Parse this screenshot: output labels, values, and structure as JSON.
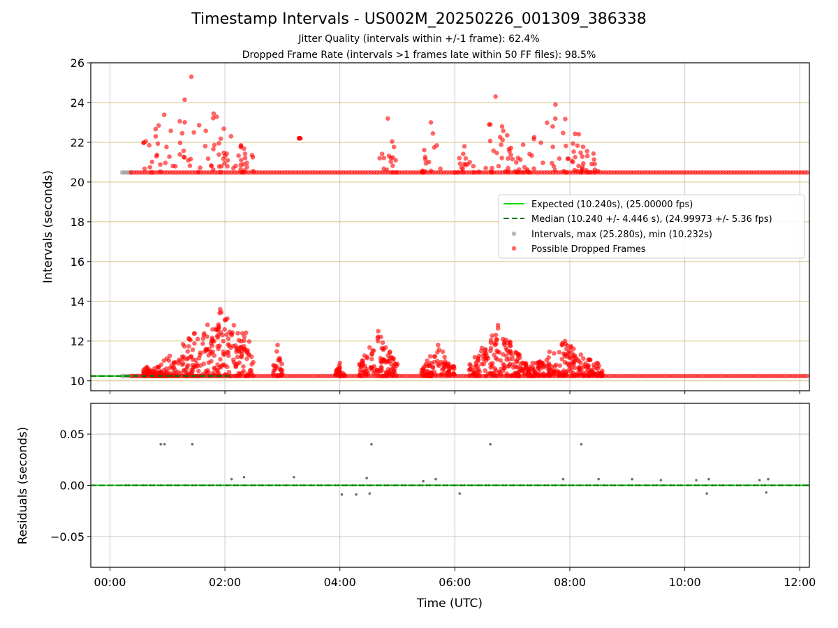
{
  "figure": {
    "title": "Timestamp Intervals - US002M_20250226_001309_386338",
    "subtitle_1": "Jitter Quality (intervals within +/-1 frame): 62.4%",
    "subtitle_2": "Dropped Frame Rate (intervals >1 frames late within 50 FF files): 98.5%",
    "xlabel": "Time (UTC)"
  },
  "colors": {
    "expected": "#00dd00",
    "median": "#007700",
    "intervals": "#808080",
    "dropped": "#ff0000",
    "hgrid": "#d4c285",
    "vgrid": "#c8c8c8"
  },
  "chart_data": [
    {
      "type": "scatter",
      "ylabel": "Intervals (seconds)",
      "xlim": [
        "-00:20",
        "12:10"
      ],
      "ylim": [
        9.5,
        26
      ],
      "x_ticks": [
        "00:00",
        "02:00",
        "04:00",
        "06:00",
        "08:00",
        "10:00",
        "12:00"
      ],
      "y_ticks": [
        10,
        12,
        14,
        16,
        18,
        20,
        22,
        24,
        26
      ],
      "grid": true,
      "legend": {
        "position": "center-right",
        "entries": [
          {
            "label": "Expected (10.240s), (25.00000 fps)",
            "kind": "line",
            "color": "#00dd00"
          },
          {
            "label": "Median (10.240 +/- 4.446 s), (24.99973 +/- 5.36 fps)",
            "kind": "dashed-line",
            "color": "#007700"
          },
          {
            "label": "Intervals, max (25.280s), min (10.232s)",
            "kind": "marker",
            "color": "#808080"
          },
          {
            "label": "Possible Dropped Frames",
            "kind": "marker",
            "color": "#ff0000"
          }
        ]
      },
      "expected_value": 10.24,
      "median_value": 10.24,
      "max_interval": 25.28,
      "min_interval": 10.232,
      "baseline_bands": [
        {
          "series": "Intervals",
          "y": 10.24,
          "x_start": "00:13",
          "x_end": "02:05"
        },
        {
          "series": "Intervals",
          "y": 20.48,
          "x_start": "00:13",
          "x_end": "00:22"
        },
        {
          "series": "Possible Dropped Frames",
          "y": 10.24,
          "x_start": "00:22",
          "x_end": "12:10"
        },
        {
          "series": "Possible Dropped Frames",
          "y": 20.48,
          "x_start": "00:22",
          "x_end": "12:10"
        }
      ],
      "dropped_frame_clusters": [
        {
          "band": "upper",
          "x_start": "00:35",
          "x_end": "02:30",
          "y_min": 20.48,
          "y_max": 25.3,
          "peak_time": "01:25"
        },
        {
          "band": "upper",
          "x_start": "03:15",
          "x_end": "03:20",
          "y_min": 22.2,
          "y_max": 22.2
        },
        {
          "band": "upper",
          "x_start": "04:40",
          "x_end": "05:00",
          "y_min": 20.48,
          "y_max": 23.2
        },
        {
          "band": "upper",
          "x_start": "05:25",
          "x_end": "05:45",
          "y_min": 20.48,
          "y_max": 23.0
        },
        {
          "band": "upper",
          "x_start": "06:00",
          "x_end": "06:20",
          "y_min": 20.48,
          "y_max": 21.8
        },
        {
          "band": "upper",
          "x_start": "06:25",
          "x_end": "07:00",
          "y_min": 20.48,
          "y_max": 24.3
        },
        {
          "band": "upper",
          "x_start": "07:00",
          "x_end": "08:30",
          "y_min": 20.48,
          "y_max": 23.9
        },
        {
          "band": "lower",
          "x_start": "00:35",
          "x_end": "02:30",
          "y_min": 10.24,
          "y_max": 13.6,
          "peak_time": "01:55"
        },
        {
          "band": "lower",
          "x_start": "02:50",
          "x_end": "03:00",
          "y_min": 10.24,
          "y_max": 11.8
        },
        {
          "band": "lower",
          "x_start": "03:55",
          "x_end": "04:05",
          "y_min": 10.24,
          "y_max": 10.9
        },
        {
          "band": "lower",
          "x_start": "04:20",
          "x_end": "05:00",
          "y_min": 10.24,
          "y_max": 12.5
        },
        {
          "band": "lower",
          "x_start": "05:25",
          "x_end": "06:00",
          "y_min": 10.24,
          "y_max": 11.8
        },
        {
          "band": "lower",
          "x_start": "06:15",
          "x_end": "07:15",
          "y_min": 10.24,
          "y_max": 12.8
        },
        {
          "band": "lower",
          "x_start": "07:15",
          "x_end": "08:35",
          "y_min": 10.24,
          "y_max": 12.0
        }
      ]
    },
    {
      "type": "scatter",
      "ylabel": "Residuals (seconds)",
      "xlim": [
        "-00:20",
        "12:10"
      ],
      "ylim": [
        -0.08,
        0.08
      ],
      "x_ticks": [
        "00:00",
        "02:00",
        "04:00",
        "06:00",
        "08:00",
        "10:00",
        "12:00"
      ],
      "y_ticks": [
        "−0.05",
        "0.00",
        "0.05"
      ],
      "y_tick_values": [
        -0.05,
        0.0,
        0.05
      ],
      "grid": true,
      "reference_lines": [
        {
          "name": "Expected",
          "y": 0.0,
          "color": "#00dd00"
        },
        {
          "name": "Median",
          "y": 0.0,
          "color": "#007700",
          "dashed": true
        }
      ],
      "outliers": [
        {
          "x": "00:53",
          "y": 0.04
        },
        {
          "x": "00:57",
          "y": 0.04
        },
        {
          "x": "01:26",
          "y": 0.04
        },
        {
          "x": "04:33",
          "y": 0.04
        },
        {
          "x": "06:37",
          "y": 0.04
        },
        {
          "x": "08:12",
          "y": 0.04
        },
        {
          "x": "02:07",
          "y": 0.006
        },
        {
          "x": "02:20",
          "y": 0.008
        },
        {
          "x": "03:12",
          "y": 0.008
        },
        {
          "x": "04:02",
          "y": -0.009
        },
        {
          "x": "04:17",
          "y": -0.009
        },
        {
          "x": "04:28",
          "y": 0.007
        },
        {
          "x": "04:31",
          "y": -0.008
        },
        {
          "x": "05:27",
          "y": 0.004
        },
        {
          "x": "05:40",
          "y": 0.006
        },
        {
          "x": "06:05",
          "y": -0.008
        },
        {
          "x": "07:53",
          "y": 0.006
        },
        {
          "x": "08:30",
          "y": 0.006
        },
        {
          "x": "09:05",
          "y": 0.006
        },
        {
          "x": "09:35",
          "y": 0.005
        },
        {
          "x": "10:12",
          "y": 0.005
        },
        {
          "x": "10:23",
          "y": -0.008
        },
        {
          "x": "10:25",
          "y": 0.006
        },
        {
          "x": "11:18",
          "y": 0.005
        },
        {
          "x": "11:25",
          "y": -0.007
        },
        {
          "x": "11:27",
          "y": 0.006
        }
      ]
    }
  ]
}
